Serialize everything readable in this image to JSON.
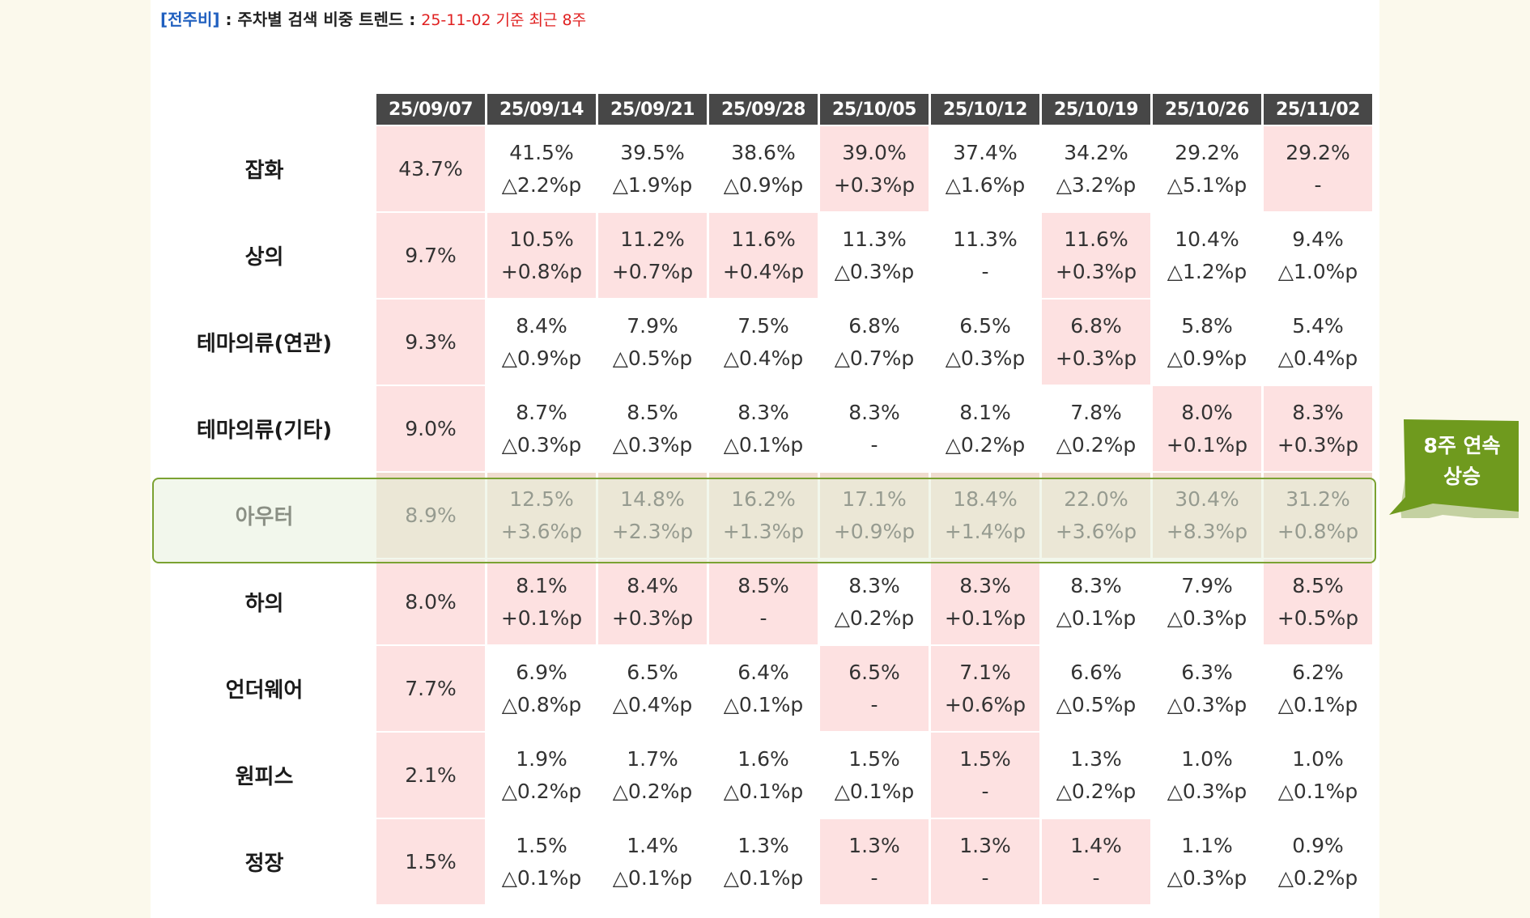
{
  "header": {
    "tag": "[전주비]",
    "separator": " : ",
    "title": "주차별 검색 비중 트렌드",
    "separator2": " : ",
    "basis": "25-11-02 기준 최근 8주"
  },
  "table": {
    "dates": [
      "25/09/07",
      "25/09/14",
      "25/09/21",
      "25/09/28",
      "25/10/05",
      "25/10/12",
      "25/10/19",
      "25/10/26",
      "25/11/02"
    ],
    "rows": [
      {
        "category": "잡화",
        "cells": [
          {
            "v": "43.7%",
            "c": "",
            "pink": true
          },
          {
            "v": "41.5%",
            "c": "△2.2%p",
            "pink": false
          },
          {
            "v": "39.5%",
            "c": "△1.9%p",
            "pink": false
          },
          {
            "v": "38.6%",
            "c": "△0.9%p",
            "pink": false
          },
          {
            "v": "39.0%",
            "c": "+0.3%p",
            "pink": true
          },
          {
            "v": "37.4%",
            "c": "△1.6%p",
            "pink": false
          },
          {
            "v": "34.2%",
            "c": "△3.2%p",
            "pink": false
          },
          {
            "v": "29.2%",
            "c": "△5.1%p",
            "pink": false
          },
          {
            "v": "29.2%",
            "c": "-",
            "pink": true
          }
        ]
      },
      {
        "category": "상의",
        "cells": [
          {
            "v": "9.7%",
            "c": "",
            "pink": true
          },
          {
            "v": "10.5%",
            "c": "+0.8%p",
            "pink": true
          },
          {
            "v": "11.2%",
            "c": "+0.7%p",
            "pink": true
          },
          {
            "v": "11.6%",
            "c": "+0.4%p",
            "pink": true
          },
          {
            "v": "11.3%",
            "c": "△0.3%p",
            "pink": false
          },
          {
            "v": "11.3%",
            "c": "-",
            "pink": false
          },
          {
            "v": "11.6%",
            "c": "+0.3%p",
            "pink": true
          },
          {
            "v": "10.4%",
            "c": "△1.2%p",
            "pink": false
          },
          {
            "v": "9.4%",
            "c": "△1.0%p",
            "pink": false
          }
        ]
      },
      {
        "category": "테마의류(연관)",
        "cells": [
          {
            "v": "9.3%",
            "c": "",
            "pink": true
          },
          {
            "v": "8.4%",
            "c": "△0.9%p",
            "pink": false
          },
          {
            "v": "7.9%",
            "c": "△0.5%p",
            "pink": false
          },
          {
            "v": "7.5%",
            "c": "△0.4%p",
            "pink": false
          },
          {
            "v": "6.8%",
            "c": "△0.7%p",
            "pink": false
          },
          {
            "v": "6.5%",
            "c": "△0.3%p",
            "pink": false
          },
          {
            "v": "6.8%",
            "c": "+0.3%p",
            "pink": true
          },
          {
            "v": "5.8%",
            "c": "△0.9%p",
            "pink": false
          },
          {
            "v": "5.4%",
            "c": "△0.4%p",
            "pink": false
          }
        ]
      },
      {
        "category": "테마의류(기타)",
        "cells": [
          {
            "v": "9.0%",
            "c": "",
            "pink": true
          },
          {
            "v": "8.7%",
            "c": "△0.3%p",
            "pink": false
          },
          {
            "v": "8.5%",
            "c": "△0.3%p",
            "pink": false
          },
          {
            "v": "8.3%",
            "c": "△0.1%p",
            "pink": false
          },
          {
            "v": "8.3%",
            "c": "-",
            "pink": false
          },
          {
            "v": "8.1%",
            "c": "△0.2%p",
            "pink": false
          },
          {
            "v": "7.8%",
            "c": "△0.2%p",
            "pink": false
          },
          {
            "v": "8.0%",
            "c": "+0.1%p",
            "pink": true
          },
          {
            "v": "8.3%",
            "c": "+0.3%p",
            "pink": true
          }
        ]
      },
      {
        "category": "아우터",
        "highlight": true,
        "cells": [
          {
            "v": "8.9%",
            "c": "",
            "pink": true
          },
          {
            "v": "12.5%",
            "c": "+3.6%p",
            "pink": true
          },
          {
            "v": "14.8%",
            "c": "+2.3%p",
            "pink": true
          },
          {
            "v": "16.2%",
            "c": "+1.3%p",
            "pink": true
          },
          {
            "v": "17.1%",
            "c": "+0.9%p",
            "pink": true
          },
          {
            "v": "18.4%",
            "c": "+1.4%p",
            "pink": true
          },
          {
            "v": "22.0%",
            "c": "+3.6%p",
            "pink": true
          },
          {
            "v": "30.4%",
            "c": "+8.3%p",
            "pink": true
          },
          {
            "v": "31.2%",
            "c": "+0.8%p",
            "pink": true
          }
        ]
      },
      {
        "category": "하의",
        "cells": [
          {
            "v": "8.0%",
            "c": "",
            "pink": true
          },
          {
            "v": "8.1%",
            "c": "+0.1%p",
            "pink": true
          },
          {
            "v": "8.4%",
            "c": "+0.3%p",
            "pink": true
          },
          {
            "v": "8.5%",
            "c": "-",
            "pink": true
          },
          {
            "v": "8.3%",
            "c": "△0.2%p",
            "pink": false
          },
          {
            "v": "8.3%",
            "c": "+0.1%p",
            "pink": true
          },
          {
            "v": "8.3%",
            "c": "△0.1%p",
            "pink": false
          },
          {
            "v": "7.9%",
            "c": "△0.3%p",
            "pink": false
          },
          {
            "v": "8.5%",
            "c": "+0.5%p",
            "pink": true
          }
        ]
      },
      {
        "category": "언더웨어",
        "cells": [
          {
            "v": "7.7%",
            "c": "",
            "pink": true
          },
          {
            "v": "6.9%",
            "c": "△0.8%p",
            "pink": false
          },
          {
            "v": "6.5%",
            "c": "△0.4%p",
            "pink": false
          },
          {
            "v": "6.4%",
            "c": "△0.1%p",
            "pink": false
          },
          {
            "v": "6.5%",
            "c": "-",
            "pink": true
          },
          {
            "v": "7.1%",
            "c": "+0.6%p",
            "pink": true
          },
          {
            "v": "6.6%",
            "c": "△0.5%p",
            "pink": false
          },
          {
            "v": "6.3%",
            "c": "△0.3%p",
            "pink": false
          },
          {
            "v": "6.2%",
            "c": "△0.1%p",
            "pink": false
          }
        ]
      },
      {
        "category": "원피스",
        "cells": [
          {
            "v": "2.1%",
            "c": "",
            "pink": true
          },
          {
            "v": "1.9%",
            "c": "△0.2%p",
            "pink": false
          },
          {
            "v": "1.7%",
            "c": "△0.2%p",
            "pink": false
          },
          {
            "v": "1.6%",
            "c": "△0.1%p",
            "pink": false
          },
          {
            "v": "1.5%",
            "c": "△0.1%p",
            "pink": false
          },
          {
            "v": "1.5%",
            "c": "-",
            "pink": true
          },
          {
            "v": "1.3%",
            "c": "△0.2%p",
            "pink": false
          },
          {
            "v": "1.0%",
            "c": "△0.3%p",
            "pink": false
          },
          {
            "v": "1.0%",
            "c": "△0.1%p",
            "pink": false
          }
        ]
      },
      {
        "category": "정장",
        "cells": [
          {
            "v": "1.5%",
            "c": "",
            "pink": true
          },
          {
            "v": "1.5%",
            "c": "△0.1%p",
            "pink": false
          },
          {
            "v": "1.4%",
            "c": "△0.1%p",
            "pink": false
          },
          {
            "v": "1.3%",
            "c": "△0.1%p",
            "pink": false
          },
          {
            "v": "1.3%",
            "c": "-",
            "pink": true
          },
          {
            "v": "1.3%",
            "c": "-",
            "pink": true
          },
          {
            "v": "1.4%",
            "c": "-",
            "pink": true
          },
          {
            "v": "1.1%",
            "c": "△0.3%p",
            "pink": false
          },
          {
            "v": "0.9%",
            "c": "△0.2%p",
            "pink": false
          }
        ]
      }
    ]
  },
  "callout": {
    "line1": "8주 연속",
    "line2": "상승"
  },
  "colors": {
    "header_bg": "#474747",
    "pink": "#fde1e1",
    "highlight_border": "#7ba232",
    "callout_bg": "#6f9a1e",
    "tag": "#1f5fbf",
    "basis": "#e02020",
    "page_bg": "#fbf9ec"
  }
}
